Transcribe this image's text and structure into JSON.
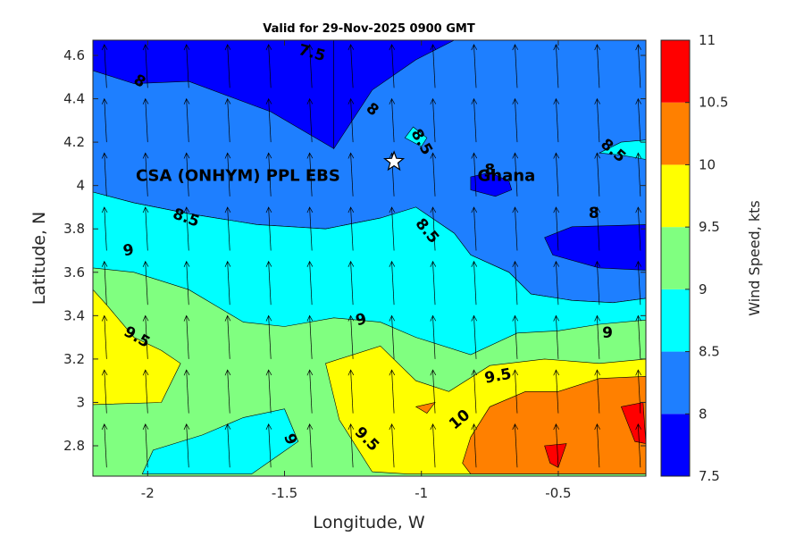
{
  "chart_data": {
    "type": "contourf",
    "title": "Valid for 29-Nov-2025 0900 GMT",
    "xlabel": "Longitude, W",
    "ylabel": "Latitude, N",
    "xlim": [
      -2.2,
      -0.18
    ],
    "ylim": [
      2.66,
      4.67
    ],
    "xticks": [
      -2,
      -1.5,
      -1,
      -0.5
    ],
    "xtick_labels": [
      "-2",
      "-1.5",
      "-1",
      "-0.5"
    ],
    "yticks": [
      2.8,
      3.0,
      3.2,
      3.4,
      3.6,
      3.8,
      4.0,
      4.2,
      4.4,
      4.6
    ],
    "ytick_labels": [
      "2.8",
      "3",
      "3.2",
      "3.4",
      "3.6",
      "3.8",
      "4",
      "4.2",
      "4.4",
      "4.6"
    ],
    "colorbar": {
      "label": "Wind Speed, kts",
      "levels": [
        7.5,
        8,
        8.5,
        9,
        9.5,
        10,
        10.5,
        11
      ],
      "tick_labels": [
        "7.5",
        "8",
        "8.5",
        "9",
        "9.5",
        "10",
        "10.5",
        "11"
      ],
      "colors": [
        "#0000ff",
        "#1e7fff",
        "#00ffff",
        "#80ff80",
        "#ffff00",
        "#ff8000",
        "#ff0000"
      ]
    },
    "regions": [
      {
        "range": [
          7.5,
          8
        ],
        "color": "#0000ff",
        "points": [
          [
            -2.2,
            4.67
          ],
          [
            -1.32,
            4.67
          ],
          [
            -1.32,
            4.17
          ],
          [
            -1.55,
            4.34
          ],
          [
            -1.85,
            4.48
          ],
          [
            -2.05,
            4.47
          ],
          [
            -2.2,
            4.53
          ]
        ]
      },
      {
        "range": [
          7.5,
          8
        ],
        "color": "#0000ff",
        "points": [
          [
            -1.32,
            4.67
          ],
          [
            -0.88,
            4.67
          ],
          [
            -1.02,
            4.58
          ],
          [
            -1.18,
            4.44
          ],
          [
            -1.32,
            4.17
          ]
        ]
      },
      {
        "range": [
          7.5,
          8
        ],
        "color": "#0000ff",
        "points": [
          [
            -0.82,
            4.04
          ],
          [
            -0.75,
            4.06
          ],
          [
            -0.68,
            4.02
          ],
          [
            -0.67,
            3.98
          ],
          [
            -0.73,
            3.95
          ],
          [
            -0.82,
            3.98
          ]
        ]
      },
      {
        "range": [
          7.5,
          8
        ],
        "color": "#0000ff",
        "points": [
          [
            -0.45,
            3.81
          ],
          [
            -0.18,
            3.82
          ],
          [
            -0.18,
            3.61
          ],
          [
            -0.35,
            3.62
          ],
          [
            -0.52,
            3.68
          ],
          [
            -0.55,
            3.76
          ]
        ]
      },
      {
        "range": [
          8.5,
          9
        ],
        "color": "#00ffff",
        "points": [
          [
            -2.2,
            3.97
          ],
          [
            -2.05,
            3.92
          ],
          [
            -1.85,
            3.87
          ],
          [
            -1.6,
            3.82
          ],
          [
            -1.35,
            3.8
          ],
          [
            -1.15,
            3.85
          ],
          [
            -1.02,
            3.9
          ],
          [
            -0.88,
            3.78
          ],
          [
            -0.82,
            3.68
          ],
          [
            -0.68,
            3.6
          ],
          [
            -0.6,
            3.5
          ],
          [
            -0.45,
            3.47
          ],
          [
            -0.3,
            3.46
          ],
          [
            -0.18,
            3.48
          ],
          [
            -0.18,
            3.38
          ],
          [
            -0.35,
            3.36
          ],
          [
            -0.5,
            3.33
          ],
          [
            -0.65,
            3.32
          ],
          [
            -0.82,
            3.22
          ],
          [
            -1.02,
            3.3
          ],
          [
            -1.15,
            3.37
          ],
          [
            -1.32,
            3.39
          ],
          [
            -1.5,
            3.35
          ],
          [
            -1.65,
            3.37
          ],
          [
            -1.85,
            3.52
          ],
          [
            -2.05,
            3.6
          ],
          [
            -2.2,
            3.62
          ]
        ]
      },
      {
        "range": [
          8.5,
          9
        ],
        "color": "#00ffff",
        "points": [
          [
            -1.0,
            4.18
          ],
          [
            -0.98,
            4.22
          ],
          [
            -1.03,
            4.27
          ],
          [
            -1.06,
            4.22
          ]
        ]
      },
      {
        "range": [
          8.5,
          9
        ],
        "color": "#00ffff",
        "points": [
          [
            -0.35,
            4.15
          ],
          [
            -0.27,
            4.2
          ],
          [
            -0.18,
            4.21
          ],
          [
            -0.18,
            4.12
          ],
          [
            -0.27,
            4.14
          ]
        ]
      },
      {
        "range": [
          8.5,
          9
        ],
        "color": "#00ffff",
        "points": [
          [
            -2.02,
            2.67
          ],
          [
            -1.98,
            2.78
          ],
          [
            -1.8,
            2.85
          ],
          [
            -1.65,
            2.93
          ],
          [
            -1.5,
            2.97
          ],
          [
            -1.45,
            2.82
          ],
          [
            -1.62,
            2.67
          ]
        ]
      },
      {
        "range": [
          9.5,
          10
        ],
        "color": "#ffff00",
        "points": [
          [
            -2.2,
            3.52
          ],
          [
            -2.15,
            3.45
          ],
          [
            -2.05,
            3.3
          ],
          [
            -1.95,
            3.24
          ],
          [
            -1.88,
            3.18
          ],
          [
            -1.95,
            3.0
          ],
          [
            -2.2,
            2.99
          ]
        ]
      },
      {
        "range": [
          9.5,
          10
        ],
        "color": "#ffff00",
        "points": [
          [
            -1.35,
            3.18
          ],
          [
            -1.15,
            3.26
          ],
          [
            -1.02,
            3.1
          ],
          [
            -0.9,
            3.05
          ],
          [
            -0.75,
            3.17
          ],
          [
            -0.55,
            3.2
          ],
          [
            -0.35,
            3.18
          ],
          [
            -0.18,
            3.2
          ],
          [
            -0.18,
            2.67
          ],
          [
            -0.82,
            2.67
          ],
          [
            -1.05,
            2.67
          ],
          [
            -1.18,
            2.68
          ],
          [
            -1.3,
            2.92
          ]
        ]
      },
      {
        "range": [
          10,
          10.5
        ],
        "color": "#ff8000",
        "points": [
          [
            -0.85,
            2.72
          ],
          [
            -0.82,
            2.84
          ],
          [
            -0.75,
            2.98
          ],
          [
            -0.62,
            3.05
          ],
          [
            -0.5,
            3.05
          ],
          [
            -0.35,
            3.11
          ],
          [
            -0.18,
            3.12
          ],
          [
            -0.18,
            2.67
          ],
          [
            -0.82,
            2.67
          ]
        ]
      },
      {
        "range": [
          10,
          10.5
        ],
        "color": "#ff8000",
        "points": [
          [
            -1.02,
            2.98
          ],
          [
            -0.95,
            3.0
          ],
          [
            -0.98,
            2.95
          ]
        ]
      },
      {
        "range": [
          10.5,
          11
        ],
        "color": "#ff0000",
        "points": [
          [
            -0.27,
            2.98
          ],
          [
            -0.19,
            3.0
          ],
          [
            -0.18,
            2.81
          ],
          [
            -0.22,
            2.82
          ]
        ]
      },
      {
        "range": [
          10.5,
          11
        ],
        "color": "#ff0000",
        "points": [
          [
            -0.55,
            2.8
          ],
          [
            -0.47,
            2.81
          ],
          [
            -0.5,
            2.7
          ],
          [
            -0.53,
            2.72
          ]
        ]
      }
    ],
    "contour_labels": [
      {
        "text": "7.5",
        "lon": -1.4,
        "lat": 4.61,
        "angle": 15
      },
      {
        "text": "8",
        "lon": -2.03,
        "lat": 4.48,
        "angle": 30
      },
      {
        "text": "8",
        "lon": -1.18,
        "lat": 4.35,
        "angle": 40
      },
      {
        "text": "8.5",
        "lon": -1.0,
        "lat": 4.2,
        "angle": 60
      },
      {
        "text": "8.5",
        "lon": -0.3,
        "lat": 4.16,
        "angle": 40
      },
      {
        "text": "8",
        "lon": -0.75,
        "lat": 4.07,
        "angle": 0
      },
      {
        "text": "8",
        "lon": -0.37,
        "lat": 3.87,
        "angle": 0
      },
      {
        "text": "8.5",
        "lon": -1.86,
        "lat": 3.85,
        "angle": 20
      },
      {
        "text": "8.5",
        "lon": -0.98,
        "lat": 3.79,
        "angle": 50
      },
      {
        "text": "9",
        "lon": -2.07,
        "lat": 3.7,
        "angle": -10
      },
      {
        "text": "9",
        "lon": -1.22,
        "lat": 3.38,
        "angle": -15
      },
      {
        "text": "9",
        "lon": -0.32,
        "lat": 3.32,
        "angle": 0
      },
      {
        "text": "9.5",
        "lon": -2.04,
        "lat": 3.3,
        "angle": 30
      },
      {
        "text": "9.5",
        "lon": -0.72,
        "lat": 3.12,
        "angle": -10
      },
      {
        "text": "9.5",
        "lon": -1.2,
        "lat": 2.83,
        "angle": 45
      },
      {
        "text": "10",
        "lon": -0.86,
        "lat": 2.92,
        "angle": -40
      },
      {
        "text": "9",
        "lon": -1.48,
        "lat": 2.83,
        "angle": 70
      }
    ],
    "annotation": {
      "site_label": "CSA (ONHYM) PPL EBS",
      "country_label": "Ghana",
      "site_lon": -1.1,
      "site_lat": 4.11,
      "site_label_lon": -1.67,
      "site_label_lat": 4.05,
      "country_label_lon": -0.82,
      "country_label_lat": 4.05
    },
    "wind_vectors": {
      "lons": [
        -2.15,
        -2.0,
        -1.85,
        -1.7,
        -1.55,
        -1.4,
        -1.25,
        -1.1,
        -0.95,
        -0.8,
        -0.65,
        -0.5,
        -0.35,
        -0.2
      ],
      "lats": [
        2.7,
        2.95,
        3.2,
        3.45,
        3.7,
        3.95,
        4.2,
        4.45
      ],
      "tilt_deg": -3,
      "length_deg_lat": 0.2
    }
  }
}
